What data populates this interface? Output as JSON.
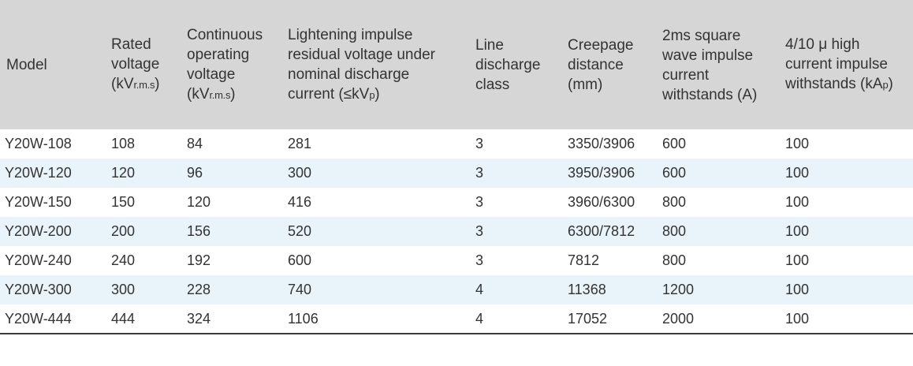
{
  "table": {
    "headers": {
      "model": "Model",
      "rated_voltage": {
        "l1": "Rated",
        "l2": "voltage",
        "unit_open": "(kV",
        "unit_sub": "r.m.s",
        "unit_close": ")"
      },
      "continuous_voltage": {
        "l1": "Continuous",
        "l2": "operating",
        "l3": "voltage",
        "unit_open": "(kV",
        "unit_sub": "r.m.s",
        "unit_close": ")"
      },
      "lightning": {
        "l1": "Lightening impulse",
        "l2": "residual voltage under",
        "l3": "nominal discharge",
        "l4": "current (≤kV",
        "unit_sub": "p",
        "unit_close": ")"
      },
      "line_discharge": {
        "l1": "Line",
        "l2": "discharge",
        "l3": "class"
      },
      "creepage": {
        "l1": "Creepage",
        "l2": "distance",
        "l3": "(mm)"
      },
      "square_wave": {
        "l1": "2ms square",
        "l2": "wave impulse",
        "l3": "current",
        "l4": "withstands (A)"
      },
      "high_current": {
        "l1": "4/10 μ high",
        "l2": "current impulse",
        "l3": "withstands (kA",
        "unit_sub": "p",
        "unit_close": ")"
      }
    },
    "rows": [
      [
        "Y20W-108",
        "108",
        "84",
        "281",
        "3",
        "3350/3906",
        "600",
        "100"
      ],
      [
        "Y20W-120",
        "120",
        "96",
        "300",
        "3",
        "3950/3906",
        "600",
        "100"
      ],
      [
        "Y20W-150",
        "150",
        "120",
        "416",
        "3",
        "3960/6300",
        "800",
        "100"
      ],
      [
        "Y20W-200",
        "200",
        "156",
        "520",
        "3",
        "6300/7812",
        "800",
        "100"
      ],
      [
        "Y20W-240",
        "240",
        "192",
        "600",
        "3",
        "7812",
        "800",
        "100"
      ],
      [
        "Y20W-300",
        "300",
        "228",
        "740",
        "4",
        "11368",
        "1200",
        "100"
      ],
      [
        "Y20W-444",
        "444",
        "324",
        "1106",
        "4",
        "17052",
        "2000",
        "100"
      ]
    ]
  },
  "colors": {
    "header_bg": "#d6d6d6",
    "stripe_bg": "#e8f4fa",
    "row_bg": "#ffffff",
    "bottom_rule": "#3a3a3a"
  }
}
